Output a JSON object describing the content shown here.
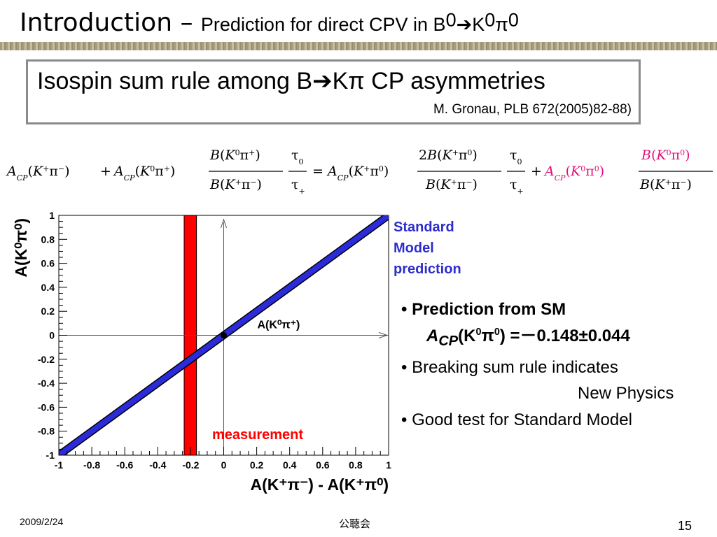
{
  "slide": {
    "title_main": "Introduction",
    "title_dash": " – ",
    "title_sub_text": "Prediction for direct CPV  in B",
    "title_sup1": "0",
    "title_arrow": "➔",
    "title_k": "K",
    "title_sup2": "0",
    "title_pi": "π",
    "title_sup3": "0"
  },
  "rule": {
    "title_pre": "Isospin sum rule among B",
    "title_arrow": "➔",
    "title_post": "Kπ CP asymmetries",
    "citation": "M. Gronau, PLB 672(2005)82-88)"
  },
  "equation": {
    "a": "A",
    "cp": "CP",
    "k": "K",
    "pi": "π",
    "b": "B",
    "tau": "τ",
    "zero": "0",
    "plus": "+",
    "minus": "−",
    "eq": "=",
    "two": "2",
    "lp": "(",
    "rp": ")",
    "colors": {
      "normal": "#000000",
      "highlight": "#e0107a"
    }
  },
  "chart_data": {
    "type": "line",
    "xlabel": "A(K⁺π⁻) - A(K⁺π⁰)",
    "ylabel": "A(K⁰π⁰)",
    "xlim": [
      -1,
      1
    ],
    "ylim": [
      -1,
      1
    ],
    "xticks": [
      "-1",
      "-0.8",
      "-0.6",
      "-0.4",
      "-0.2",
      "0",
      "0.2",
      "0.4",
      "0.6",
      "0.8",
      "1"
    ],
    "yticks": [
      "-1",
      "-0.8",
      "-0.6",
      "-0.4",
      "-0.2",
      "0",
      "0.2",
      "0.4",
      "0.6",
      "0.8",
      "1"
    ],
    "sm_band": {
      "x": [
        -1,
        1
      ],
      "y": [
        -1,
        1
      ],
      "color": "#2b2bd9"
    },
    "measurement_band": {
      "x_range": [
        -0.24,
        -0.165
      ],
      "color": "#ff0000",
      "label": "measurement"
    },
    "reference_point": {
      "x": 0,
      "y": 0,
      "label": "A(K⁰π⁺)"
    },
    "sm_label": [
      "Standard",
      "Model",
      "prediction"
    ]
  },
  "bullets": {
    "b1": "• Prediction from SM",
    "b1_a": "A",
    "b1_cp": "CP",
    "b1_rest": "(K",
    "b1_sup1": "0",
    "b1_pi": "π",
    "b1_sup2": "0",
    "b1_value": ") =－0.148±0.044",
    "b2": "• Breaking sum rule indicates",
    "b2_cont": "New Physics",
    "b3": "• Good test for Standard Model"
  },
  "footer": {
    "date": "2009/2/24",
    "center": "公聴会",
    "page": "15"
  }
}
